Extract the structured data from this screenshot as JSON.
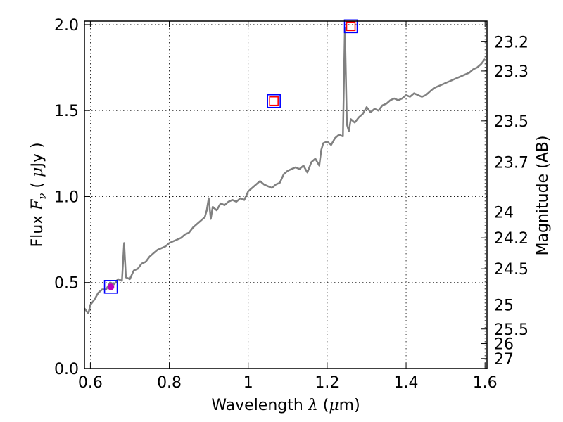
{
  "chart_data": {
    "type": "line",
    "xlabel": "Wavelength  λ (μm)",
    "ylabel": "Flux  Fν  ( μJy )",
    "y2label": "Magnitude (AB)",
    "xlim": [
      0.585,
      1.605
    ],
    "ylim": [
      0.0,
      2.02
    ],
    "grid": true,
    "x_ticks": [
      0.6,
      0.8,
      1.0,
      1.2,
      1.4,
      1.6
    ],
    "x_tick_labels": [
      "0.6",
      "0.8",
      "1",
      "1.2",
      "1.4",
      "1.6"
    ],
    "y_ticks": [
      0.0,
      0.5,
      1.0,
      1.5,
      2.0
    ],
    "y_tick_labels": [
      "0.0",
      "0.5",
      "1.0",
      "1.5",
      "2.0"
    ],
    "mag_ticks": [
      {
        "label": "23.2",
        "flux": 1.9
      },
      {
        "label": "23.3",
        "flux": 1.73
      },
      {
        "label": "23.5",
        "flux": 1.44
      },
      {
        "label": "23.7",
        "flux": 1.2
      },
      {
        "label": "24",
        "flux": 0.91
      },
      {
        "label": "24.2",
        "flux": 0.76
      },
      {
        "label": "24.5",
        "flux": 0.58
      },
      {
        "label": "25",
        "flux": 0.37
      },
      {
        "label": "25.5",
        "flux": 0.23
      },
      {
        "label": "26",
        "flux": 0.145
      },
      {
        "label": "27",
        "flux": 0.058
      }
    ],
    "series": [
      {
        "color": "#808080",
        "x": [
          0.585,
          0.595,
          0.6,
          0.61,
          0.62,
          0.63,
          0.64,
          0.65,
          0.66,
          0.67,
          0.68,
          0.6855,
          0.69,
          0.7,
          0.71,
          0.72,
          0.73,
          0.74,
          0.75,
          0.76,
          0.77,
          0.78,
          0.79,
          0.8,
          0.81,
          0.82,
          0.83,
          0.84,
          0.85,
          0.86,
          0.87,
          0.88,
          0.89,
          0.895,
          0.9,
          0.905,
          0.91,
          0.92,
          0.93,
          0.94,
          0.95,
          0.96,
          0.97,
          0.98,
          0.99,
          1.0,
          1.01,
          1.02,
          1.03,
          1.04,
          1.05,
          1.06,
          1.07,
          1.08,
          1.09,
          1.1,
          1.11,
          1.12,
          1.13,
          1.14,
          1.15,
          1.16,
          1.17,
          1.18,
          1.185,
          1.19,
          1.2,
          1.21,
          1.22,
          1.23,
          1.24,
          1.245,
          1.25,
          1.255,
          1.26,
          1.27,
          1.28,
          1.29,
          1.3,
          1.31,
          1.32,
          1.33,
          1.34,
          1.35,
          1.36,
          1.37,
          1.38,
          1.39,
          1.4,
          1.41,
          1.42,
          1.43,
          1.44,
          1.45,
          1.46,
          1.47,
          1.48,
          1.49,
          1.5,
          1.51,
          1.52,
          1.53,
          1.54,
          1.55,
          1.56,
          1.57,
          1.58,
          1.59,
          1.6
        ],
        "y": [
          0.35,
          0.32,
          0.37,
          0.4,
          0.44,
          0.46,
          0.46,
          0.5,
          0.49,
          0.52,
          0.51,
          0.73,
          0.53,
          0.52,
          0.57,
          0.58,
          0.61,
          0.62,
          0.65,
          0.67,
          0.69,
          0.7,
          0.71,
          0.73,
          0.74,
          0.75,
          0.76,
          0.78,
          0.79,
          0.82,
          0.84,
          0.86,
          0.88,
          0.92,
          0.99,
          0.87,
          0.94,
          0.92,
          0.96,
          0.95,
          0.97,
          0.98,
          0.97,
          0.99,
          0.98,
          1.03,
          1.05,
          1.07,
          1.09,
          1.07,
          1.06,
          1.05,
          1.07,
          1.08,
          1.13,
          1.15,
          1.16,
          1.17,
          1.16,
          1.18,
          1.14,
          1.2,
          1.22,
          1.18,
          1.27,
          1.31,
          1.32,
          1.3,
          1.34,
          1.36,
          1.35,
          1.98,
          1.42,
          1.38,
          1.45,
          1.43,
          1.46,
          1.48,
          1.52,
          1.49,
          1.51,
          1.5,
          1.53,
          1.54,
          1.56,
          1.57,
          1.56,
          1.57,
          1.59,
          1.58,
          1.6,
          1.59,
          1.58,
          1.59,
          1.61,
          1.63,
          1.64,
          1.65,
          1.66,
          1.67,
          1.68,
          1.69,
          1.7,
          1.71,
          1.72,
          1.74,
          1.75,
          1.77,
          1.8
        ]
      }
    ],
    "markers": [
      {
        "x": 0.652,
        "y": 0.475,
        "face": "none",
        "edge": "#0000ff",
        "size": 18
      },
      {
        "x": 0.652,
        "y": 0.475,
        "face": "#bf00bf",
        "edge": "#bf00bf",
        "size": 10,
        "round": true
      },
      {
        "x": 1.065,
        "y": 1.555,
        "face": "none",
        "edge": "#0000ff",
        "size": 18
      },
      {
        "x": 1.065,
        "y": 1.555,
        "face": "none",
        "edge": "#ff0000",
        "size": 12
      },
      {
        "x": 1.26,
        "y": 1.99,
        "face": "none",
        "edge": "#0000ff",
        "size": 18
      },
      {
        "x": 1.26,
        "y": 1.99,
        "face": "none",
        "edge": "#ff0000",
        "size": 12
      }
    ],
    "errorbars": [
      {
        "x": 0.652,
        "y": 0.475,
        "yerr": 0.012
      }
    ]
  }
}
